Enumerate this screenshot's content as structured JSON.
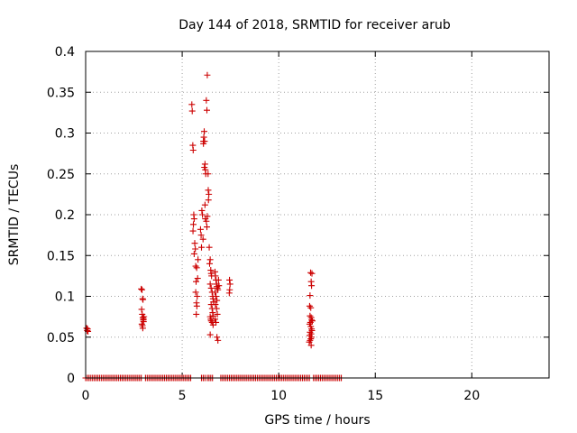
{
  "chart_data": {
    "type": "scatter",
    "title": "Day 144 of 2018, SRMTID for receiver arub",
    "xlabel": "GPS time / hours",
    "ylabel": "SRMTID / TECUs",
    "xlim": [
      0,
      24
    ],
    "ylim": [
      0,
      0.4
    ],
    "xticks": [
      0,
      5,
      10,
      15,
      20
    ],
    "yticks": [
      0,
      0.05,
      0.1,
      0.15,
      0.2,
      0.25,
      0.3,
      0.35,
      0.4
    ],
    "xtick_labels": [
      "0",
      "5",
      "10",
      "15",
      "20"
    ],
    "ytick_labels": [
      "0",
      "0.05",
      "0.1",
      "0.15",
      "0.2",
      "0.25",
      "0.3",
      "0.35",
      "0.4"
    ],
    "grid": true,
    "color": "#cc0000",
    "zero_segments": [
      [
        0.0,
        2.9
      ],
      [
        3.1,
        5.5
      ],
      [
        6.0,
        6.2
      ],
      [
        6.3,
        6.6
      ],
      [
        7.0,
        11.6
      ],
      [
        11.8,
        13.3
      ]
    ],
    "points": [
      [
        0.05,
        0.061
      ],
      [
        0.08,
        0.058
      ],
      [
        0.1,
        0.06
      ],
      [
        0.12,
        0.057
      ],
      [
        2.88,
        0.109
      ],
      [
        2.92,
        0.108
      ],
      [
        2.95,
        0.097
      ],
      [
        2.97,
        0.096
      ],
      [
        2.9,
        0.084
      ],
      [
        2.93,
        0.078
      ],
      [
        2.96,
        0.074
      ],
      [
        2.98,
        0.071
      ],
      [
        3.0,
        0.069
      ],
      [
        2.91,
        0.066
      ],
      [
        2.94,
        0.064
      ],
      [
        2.96,
        0.061
      ],
      [
        3.02,
        0.075
      ],
      [
        3.0,
        0.072
      ],
      [
        5.5,
        0.335
      ],
      [
        5.52,
        0.327
      ],
      [
        5.55,
        0.285
      ],
      [
        5.57,
        0.279
      ],
      [
        5.6,
        0.2
      ],
      [
        5.62,
        0.195
      ],
      [
        5.58,
        0.188
      ],
      [
        5.56,
        0.18
      ],
      [
        5.65,
        0.165
      ],
      [
        5.68,
        0.158
      ],
      [
        5.62,
        0.152
      ],
      [
        5.7,
        0.137
      ],
      [
        5.75,
        0.135
      ],
      [
        5.72,
        0.118
      ],
      [
        5.7,
        0.105
      ],
      [
        5.78,
        0.1
      ],
      [
        5.74,
        0.092
      ],
      [
        5.76,
        0.088
      ],
      [
        5.73,
        0.078
      ],
      [
        5.8,
        0.122
      ],
      [
        5.82,
        0.145
      ],
      [
        5.95,
        0.182
      ],
      [
        5.98,
        0.175
      ],
      [
        6.02,
        0.205
      ],
      [
        6.05,
        0.2
      ],
      [
        6.08,
        0.17
      ],
      [
        6.0,
        0.16
      ],
      [
        6.1,
        0.29
      ],
      [
        6.12,
        0.295
      ],
      [
        6.14,
        0.302
      ],
      [
        6.1,
        0.287
      ],
      [
        6.16,
        0.29
      ],
      [
        6.15,
        0.258
      ],
      [
        6.18,
        0.262
      ],
      [
        6.2,
        0.255
      ],
      [
        6.22,
        0.25
      ],
      [
        6.18,
        0.212
      ],
      [
        6.2,
        0.195
      ],
      [
        6.25,
        0.192
      ],
      [
        6.28,
        0.185
      ],
      [
        6.3,
        0.198
      ],
      [
        6.25,
        0.34
      ],
      [
        6.28,
        0.328
      ],
      [
        6.3,
        0.371
      ],
      [
        6.35,
        0.23
      ],
      [
        6.38,
        0.225
      ],
      [
        6.36,
        0.218
      ],
      [
        6.34,
        0.25
      ],
      [
        6.4,
        0.16
      ],
      [
        6.45,
        0.145
      ],
      [
        6.42,
        0.14
      ],
      [
        6.48,
        0.132
      ],
      [
        6.5,
        0.128
      ],
      [
        6.52,
        0.125
      ],
      [
        6.45,
        0.115
      ],
      [
        6.5,
        0.11
      ],
      [
        6.55,
        0.105
      ],
      [
        6.58,
        0.1
      ],
      [
        6.6,
        0.097
      ],
      [
        6.62,
        0.093
      ],
      [
        6.5,
        0.09
      ],
      [
        6.55,
        0.085
      ],
      [
        6.58,
        0.08
      ],
      [
        6.6,
        0.076
      ],
      [
        6.45,
        0.075
      ],
      [
        6.48,
        0.072
      ],
      [
        6.5,
        0.07
      ],
      [
        6.55,
        0.068
      ],
      [
        6.6,
        0.065
      ],
      [
        6.45,
        0.053
      ],
      [
        6.7,
        0.13
      ],
      [
        6.72,
        0.125
      ],
      [
        6.75,
        0.12
      ],
      [
        6.78,
        0.115
      ],
      [
        6.8,
        0.112
      ],
      [
        6.82,
        0.11
      ],
      [
        6.85,
        0.108
      ],
      [
        6.7,
        0.105
      ],
      [
        6.75,
        0.1
      ],
      [
        6.8,
        0.095
      ],
      [
        6.72,
        0.09
      ],
      [
        6.78,
        0.085
      ],
      [
        6.82,
        0.078
      ],
      [
        6.7,
        0.072
      ],
      [
        6.75,
        0.068
      ],
      [
        6.8,
        0.05
      ],
      [
        6.85,
        0.046
      ],
      [
        6.9,
        0.113
      ],
      [
        6.88,
        0.12
      ],
      [
        7.45,
        0.12
      ],
      [
        7.48,
        0.115
      ],
      [
        7.46,
        0.108
      ],
      [
        7.44,
        0.104
      ],
      [
        11.65,
        0.129
      ],
      [
        11.72,
        0.128
      ],
      [
        11.68,
        0.118
      ],
      [
        11.7,
        0.113
      ],
      [
        11.62,
        0.101
      ],
      [
        11.6,
        0.088
      ],
      [
        11.66,
        0.086
      ],
      [
        11.62,
        0.076
      ],
      [
        11.68,
        0.074
      ],
      [
        11.7,
        0.071
      ],
      [
        11.64,
        0.068
      ],
      [
        11.6,
        0.066
      ],
      [
        11.66,
        0.063
      ],
      [
        11.7,
        0.06
      ],
      [
        11.72,
        0.058
      ],
      [
        11.62,
        0.056
      ],
      [
        11.68,
        0.054
      ],
      [
        11.6,
        0.052
      ],
      [
        11.7,
        0.05
      ],
      [
        11.66,
        0.048
      ],
      [
        11.62,
        0.046
      ],
      [
        11.58,
        0.044
      ],
      [
        11.68,
        0.04
      ],
      [
        11.74,
        0.07
      ]
    ]
  }
}
